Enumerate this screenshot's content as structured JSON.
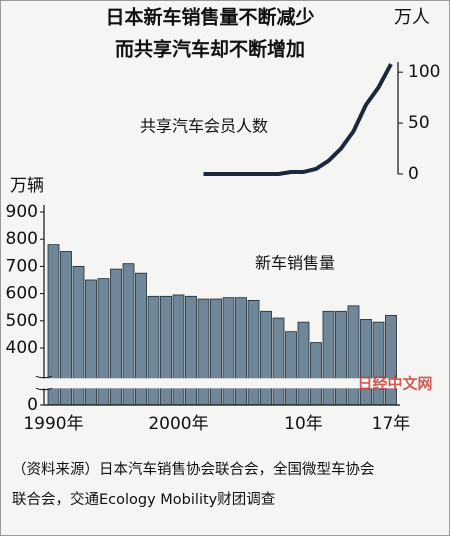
{
  "title": [
    "日本新车销售量不断减少",
    "而共享汽车却不断增加"
  ],
  "source": [
    "（资料来源）日本汽车销售协会联合会，全国微型车协会",
    "联合会，交通Ecology Mobility财团调查"
  ],
  "watermark": "日经中文网",
  "chart_data": [
    {
      "type": "line",
      "label": "共享汽车会员人数",
      "unit": "万人",
      "color": "#1c2740",
      "x": [
        2002,
        2003,
        2004,
        2005,
        2006,
        2007,
        2008,
        2009,
        2010,
        2011,
        2012,
        2013,
        2014,
        2015,
        2016,
        2017
      ],
      "values": [
        0,
        0,
        0,
        0,
        0,
        0,
        0,
        2,
        2,
        5,
        13,
        25,
        42,
        68,
        85,
        108
      ],
      "ylim": [
        0,
        110
      ],
      "yticks": [
        0,
        50,
        100
      ],
      "axis": "y2"
    },
    {
      "type": "bar",
      "label": "新车销售量",
      "unit": "万辆",
      "color": "#6f8798",
      "categories": [
        "1990年",
        null,
        null,
        null,
        null,
        null,
        null,
        null,
        null,
        null,
        "2000年",
        null,
        null,
        null,
        null,
        null,
        null,
        null,
        null,
        null,
        "10年",
        null,
        null,
        null,
        null,
        null,
        null,
        "17年"
      ],
      "values": [
        780,
        755,
        700,
        650,
        655,
        690,
        710,
        675,
        590,
        590,
        595,
        590,
        580,
        580,
        585,
        585,
        575,
        535,
        510,
        460,
        495,
        420,
        535,
        535,
        555,
        505,
        495,
        520
      ],
      "ylim": [
        0,
        900
      ],
      "yticks": [
        0,
        400,
        500,
        600,
        700,
        800,
        900
      ],
      "axis_break": [
        0,
        350
      ]
    }
  ]
}
